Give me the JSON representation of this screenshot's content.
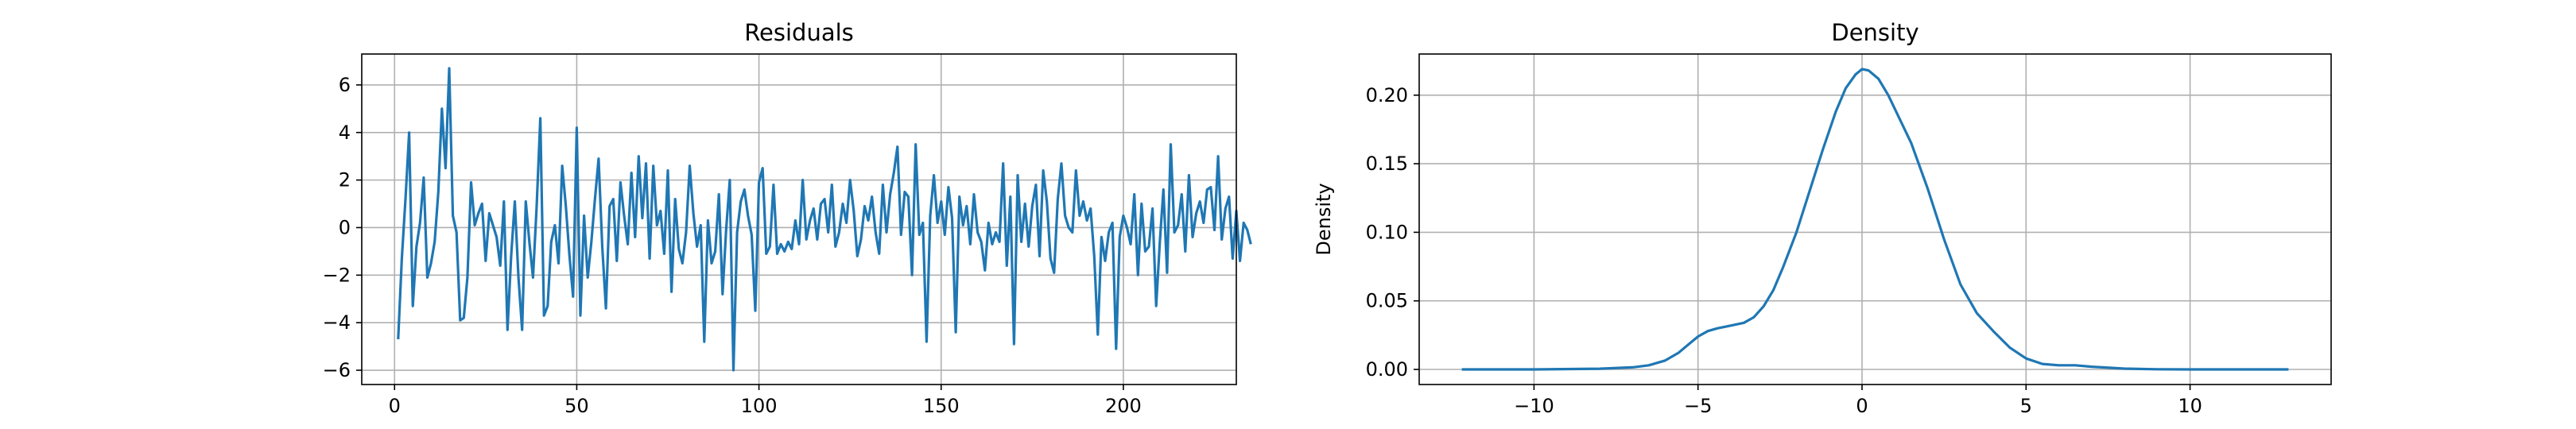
{
  "chart_data": [
    {
      "type": "line",
      "title": "Residuals",
      "xlabel": "",
      "ylabel": "",
      "xlim": [
        -9,
        231
      ],
      "ylim": [
        -6.6,
        7.3
      ],
      "grid": true,
      "xticks": [
        0,
        50,
        100,
        150,
        200
      ],
      "yticks": [
        -6,
        -4,
        -2,
        0,
        2,
        4,
        6
      ],
      "color": "#1f77b4",
      "x_start": 1,
      "values": [
        -4.7,
        -1.3,
        1.2,
        4.0,
        -3.3,
        -0.8,
        0.2,
        2.1,
        -2.1,
        -1.5,
        -0.6,
        1.5,
        5.0,
        2.5,
        6.7,
        0.5,
        -0.2,
        -3.9,
        -3.8,
        -2.1,
        1.9,
        0.1,
        0.6,
        1.0,
        -1.4,
        0.6,
        0.1,
        -0.4,
        -1.6,
        1.1,
        -4.3,
        -1.2,
        1.1,
        -2.1,
        -4.3,
        1.1,
        -0.6,
        -2.1,
        0.9,
        4.6,
        -3.7,
        -3.3,
        -0.6,
        0.1,
        -1.5,
        2.6,
        0.9,
        -1.2,
        -2.9,
        4.2,
        -3.7,
        0.5,
        -2.1,
        -0.6,
        1.2,
        2.9,
        -0.8,
        -3.4,
        0.9,
        1.2,
        -1.4,
        1.9,
        0.5,
        -0.7,
        2.3,
        -0.4,
        3.0,
        0.4,
        2.7,
        -1.3,
        2.6,
        0.1,
        0.7,
        -1.1,
        2.4,
        -2.7,
        1.2,
        -0.9,
        -1.5,
        -0.2,
        2.6,
        0.6,
        -0.8,
        0.1,
        -4.8,
        0.3,
        -1.5,
        -1.0,
        1.4,
        -2.8,
        -0.1,
        2.0,
        -6.0,
        -0.2,
        1.1,
        1.6,
        0.5,
        -0.3,
        -3.5,
        1.9,
        2.5,
        -1.1,
        -0.8,
        1.8,
        -1.1,
        -0.7,
        -1.0,
        -0.6,
        -0.9,
        0.3,
        -0.7,
        2.0,
        -0.5,
        0.3,
        0.8,
        -0.5,
        1.0,
        1.2,
        -0.2,
        1.8,
        -0.8,
        -0.2,
        1.0,
        0.2,
        2.0,
        0.7,
        -1.2,
        -0.5,
        0.9,
        0.3,
        1.3,
        -0.2,
        -1.1,
        1.8,
        -0.2,
        1.4,
        2.3,
        3.4,
        -0.3,
        1.5,
        1.3,
        -2.0,
        3.5,
        -0.3,
        0.2,
        -4.8,
        0.5,
        2.2,
        0.2,
        1.1,
        -0.3,
        1.7,
        0.4,
        -4.4,
        1.3,
        0.1,
        0.9,
        -0.7,
        1.4,
        -0.2,
        -0.6,
        -1.8,
        0.2,
        -0.7,
        -0.2,
        -0.6,
        2.7,
        -1.6,
        1.3,
        -4.9,
        2.2,
        -0.6,
        1.0,
        -0.8,
        0.9,
        1.8,
        -1.2,
        2.4,
        1.1,
        -1.3,
        -1.9,
        1.2,
        2.7,
        0.5,
        0.0,
        -0.2,
        2.4,
        0.5,
        1.1,
        0.3,
        0.8,
        -1.2,
        -4.5,
        -0.4,
        -1.4,
        -0.2,
        0.2,
        -5.1,
        -0.4,
        0.5,
        0.0,
        -0.7,
        1.4,
        -2.0,
        1.0,
        -1.0,
        -0.8,
        0.8,
        -3.3,
        -0.6,
        1.6,
        -1.9,
        3.5,
        -0.2,
        0.1,
        1.4,
        -1.0,
        2.2,
        -0.4,
        0.6,
        1.1,
        0.2,
        1.6,
        1.7,
        -0.1,
        3.0,
        -0.5,
        0.8,
        1.3,
        -1.3,
        0.7,
        -1.4,
        0.2,
        -0.1,
        -0.7
      ]
    },
    {
      "type": "line",
      "title": "Density",
      "xlabel": "",
      "ylabel": "Density",
      "xlim": [
        -13.5,
        14.3
      ],
      "ylim": [
        -0.011,
        0.23
      ],
      "grid": true,
      "xticks": [
        -10,
        -5,
        0,
        5,
        10
      ],
      "yticks": [
        0.0,
        0.05,
        0.1,
        0.15,
        0.2
      ],
      "ytick_labels": [
        "0.00",
        "0.05",
        "0.10",
        "0.15",
        "0.20"
      ],
      "color": "#1f77b4",
      "x": [
        -12.2,
        -10,
        -8,
        -7,
        -6.5,
        -6,
        -5.6,
        -5.3,
        -5.0,
        -4.7,
        -4.4,
        -4.0,
        -3.6,
        -3.3,
        -3.0,
        -2.7,
        -2.4,
        -2.0,
        -1.6,
        -1.2,
        -0.8,
        -0.5,
        -0.2,
        0.0,
        0.2,
        0.5,
        0.8,
        1.1,
        1.5,
        2.0,
        2.5,
        3.0,
        3.5,
        4.0,
        4.5,
        5.0,
        5.5,
        6.0,
        6.5,
        7.0,
        8.0,
        9.0,
        10.0,
        11.0,
        13.0
      ],
      "y": [
        0.0,
        0.0,
        0.0005,
        0.0015,
        0.003,
        0.0065,
        0.012,
        0.018,
        0.024,
        0.028,
        0.03,
        0.032,
        0.034,
        0.038,
        0.046,
        0.058,
        0.075,
        0.1,
        0.13,
        0.16,
        0.188,
        0.205,
        0.215,
        0.219,
        0.218,
        0.212,
        0.2,
        0.185,
        0.165,
        0.132,
        0.095,
        0.062,
        0.041,
        0.028,
        0.016,
        0.008,
        0.004,
        0.003,
        0.003,
        0.002,
        0.0006,
        0.0001,
        0.0,
        0.0,
        0.0
      ]
    }
  ]
}
